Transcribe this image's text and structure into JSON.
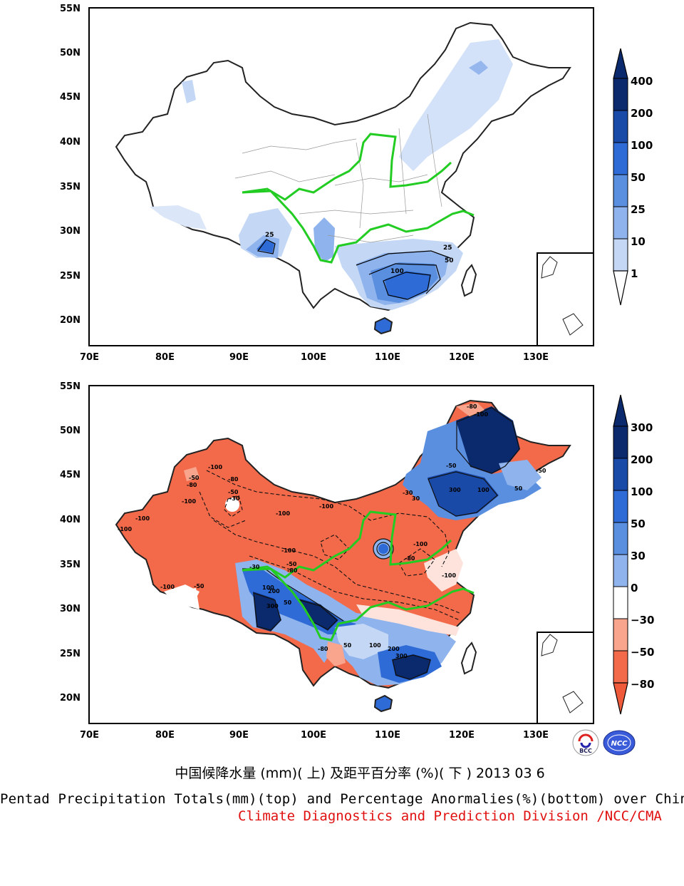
{
  "maps": [
    {
      "id": "top",
      "lat_ticks": [
        "55N",
        "50N",
        "45N",
        "40N",
        "35N",
        "30N",
        "25N",
        "20N"
      ],
      "lon_ticks": [
        "70E",
        "80E",
        "90E",
        "100E",
        "110E",
        "120E",
        "130E"
      ],
      "contour_labels": [
        "25",
        "25",
        "50",
        "100"
      ],
      "colorbar_labels": [
        "400",
        "200",
        "100",
        "50",
        "25",
        "10",
        "1"
      ],
      "colorbar_colors": [
        "#0b2a6e",
        "#1a4aa8",
        "#2e6bd6",
        "#5a8fe0",
        "#8fb3ec",
        "#c4d8f5",
        "#ffffff"
      ]
    },
    {
      "id": "bottom",
      "lat_ticks": [
        "55N",
        "50N",
        "45N",
        "40N",
        "35N",
        "30N",
        "25N",
        "20N"
      ],
      "lon_ticks": [
        "70E",
        "80E",
        "90E",
        "100E",
        "110E",
        "120E",
        "130E"
      ],
      "contour_labels": [
        "-100",
        "-50",
        "-80",
        "-50",
        "-30",
        "-100",
        "-100",
        "-80",
        "-100",
        "-100",
        "-100",
        "-100",
        "-50",
        "-80",
        "-100",
        "-100",
        "-100",
        "-50",
        "-80",
        "-30",
        "300",
        "200",
        "100",
        "50",
        "-80",
        "50",
        "300",
        "200",
        "100",
        "30",
        "-30",
        "-50",
        "-80",
        "-100",
        "300",
        "100",
        "50",
        "-50"
      ],
      "colorbar_labels": [
        "300",
        "200",
        "100",
        "50",
        "30",
        "0",
        "−30",
        "−50",
        "−80"
      ],
      "colorbar_colors": [
        "#0b2a6e",
        "#1a4aa8",
        "#2e6bd6",
        "#5a8fe0",
        "#8fb3ec",
        "#ffffff",
        "#fde3dc",
        "#f9a58e",
        "#f26a4a",
        "#ef5a3a"
      ]
    }
  ],
  "titles": {
    "cn": "中国候降水量 (mm)( 上) 及距平百分率 (%)( 下 ) 2013 03 6",
    "en": "Pentad Precipitation Totals(mm)(top) and Percentage Anormalies(%)(bottom) over China",
    "org": "Climate Diagnostics and Prediction Division /NCC/CMA"
  },
  "logos": {
    "left": "BCC",
    "right": "NCC"
  },
  "colors": {
    "river": "#22cc22",
    "title_org": "#e01010"
  }
}
